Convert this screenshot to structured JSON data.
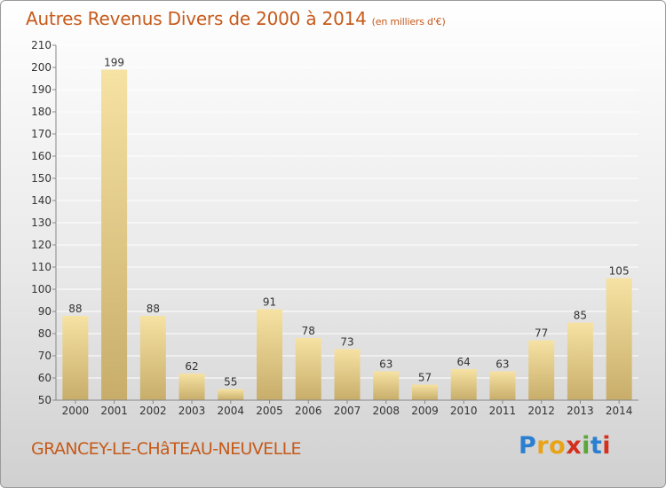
{
  "header": {
    "title": "Autres Revenus Divers de 2000 à 2014",
    "unit": "(en milliers d'€)"
  },
  "footer": {
    "commune": "GRANCEY-LE-CHâTEAU-NEUVELLE",
    "logo_letters": [
      "P",
      "r",
      "o",
      "x",
      "i",
      "t",
      "i"
    ],
    "logo_colors": [
      "#2b7fd0",
      "#e8a316",
      "#e8a316",
      "#d4301e",
      "#5aa63a",
      "#2b7fd0",
      "#d4301e"
    ]
  },
  "colors": {
    "title": "#c65a1a",
    "bar_light": "#f6e2a3",
    "bar_dark": "#c8ad6a",
    "grid": "#ffffff",
    "axis_text": "#333333"
  },
  "chart_data": {
    "type": "bar",
    "title": "Autres Revenus Divers de 2000 à 2014",
    "categories": [
      "2000",
      "2001",
      "2002",
      "2003",
      "2004",
      "2005",
      "2006",
      "2007",
      "2008",
      "2009",
      "2010",
      "2011",
      "2012",
      "2013",
      "2014"
    ],
    "values": [
      88,
      199,
      88,
      62,
      55,
      91,
      78,
      73,
      63,
      57,
      64,
      63,
      77,
      85,
      105
    ],
    "ylim": [
      50,
      210
    ],
    "yticks": [
      50,
      60,
      70,
      80,
      90,
      100,
      110,
      120,
      130,
      140,
      150,
      160,
      170,
      180,
      190,
      200,
      210
    ],
    "grid": true,
    "xlabel": "",
    "ylabel": ""
  }
}
